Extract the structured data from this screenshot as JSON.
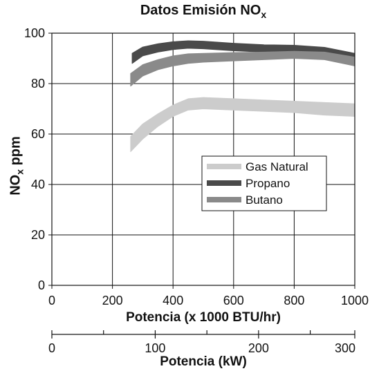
{
  "chart_data": {
    "type": "area",
    "title": {
      "main": "Datos Emisión NO",
      "sub": "x"
    },
    "ylabel": {
      "pre": "NO",
      "sub": "x",
      "post": " ppm"
    },
    "xlabel": "Potencia (x 1000 BTU/hr)",
    "x2label": "Potencia (kW)",
    "xlim": [
      0,
      1000
    ],
    "ylim": [
      0,
      100
    ],
    "x2lim": [
      0,
      293.1
    ],
    "xticks": [
      0,
      200,
      400,
      600,
      800,
      1000
    ],
    "yticks": [
      0,
      20,
      40,
      60,
      80,
      100
    ],
    "x2ticks_labeled": [
      0,
      100,
      200,
      300
    ],
    "x2ticks_minor": [
      50,
      150,
      250
    ],
    "grid": true,
    "legend_position": "center-right",
    "series": [
      {
        "name": "Gas Natural",
        "color": "#cccccc",
        "x": [
          260,
          300,
          350,
          400,
          450,
          500,
          600,
          700,
          800,
          900,
          1000
        ],
        "lower": [
          53,
          58,
          63,
          67,
          69.5,
          70,
          69.5,
          69,
          68.5,
          67.5,
          67
        ],
        "upper": [
          59,
          64,
          68,
          71.5,
          74,
          74.5,
          74,
          73.5,
          73,
          72.5,
          72
        ]
      },
      {
        "name": "Propano",
        "color": "#4a4a4a",
        "x": [
          265,
          300,
          350,
          400,
          450,
          500,
          600,
          700,
          800,
          900,
          1000
        ],
        "lower": [
          88,
          91,
          92.5,
          93.5,
          94,
          93.8,
          93,
          92.5,
          92.5,
          91.5,
          89
        ],
        "upper": [
          92,
          94.5,
          95.8,
          96.6,
          97,
          96.8,
          96,
          95.4,
          95.2,
          94.4,
          92
        ]
      },
      {
        "name": "Butano",
        "color": "#8a8a8a",
        "x": [
          260,
          300,
          350,
          400,
          450,
          500,
          600,
          700,
          800,
          900,
          1000
        ],
        "lower": [
          79,
          83,
          85.5,
          87,
          88,
          88.5,
          89,
          89.5,
          90,
          89.5,
          87
        ],
        "upper": [
          84,
          87.5,
          89.5,
          91,
          91.8,
          92,
          92.3,
          92.5,
          92.8,
          92.5,
          90.5
        ]
      }
    ]
  }
}
